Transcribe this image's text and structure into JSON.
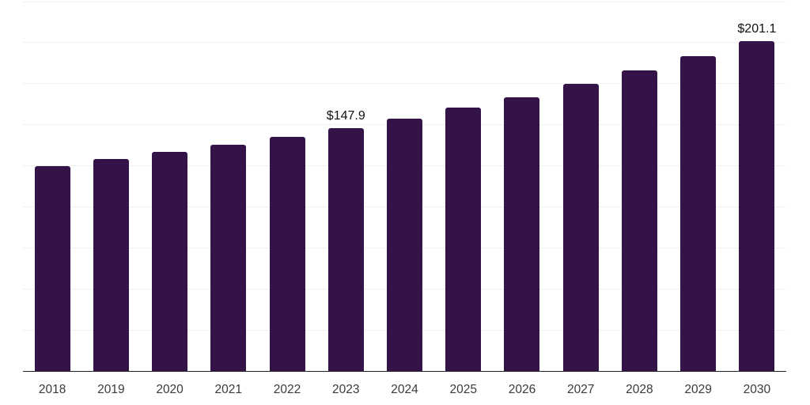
{
  "chart_data": {
    "type": "bar",
    "title": "",
    "xlabel": "",
    "ylabel": "",
    "categories": [
      "2018",
      "2019",
      "2020",
      "2021",
      "2022",
      "2023",
      "2024",
      "2025",
      "2026",
      "2027",
      "2028",
      "2029",
      "2030"
    ],
    "values": [
      124.7,
      129.0,
      133.4,
      137.9,
      142.4,
      147.9,
      153.7,
      160.3,
      166.8,
      174.8,
      183.2,
      192.0,
      201.1
    ],
    "data_labels": [
      {
        "category": "2023",
        "text": "$147.9"
      },
      {
        "category": "2030",
        "text": "$201.1"
      }
    ],
    "ylim": [
      0,
      225
    ],
    "grid_step": 25,
    "grid": true,
    "legend_position": "none",
    "colors": {
      "bar": "#341349",
      "gridline": "#f0f0f0",
      "axis_line": "#262626",
      "data_label": "#111111",
      "tick_label": "#3a3a3a",
      "background": "#ffffff"
    }
  }
}
